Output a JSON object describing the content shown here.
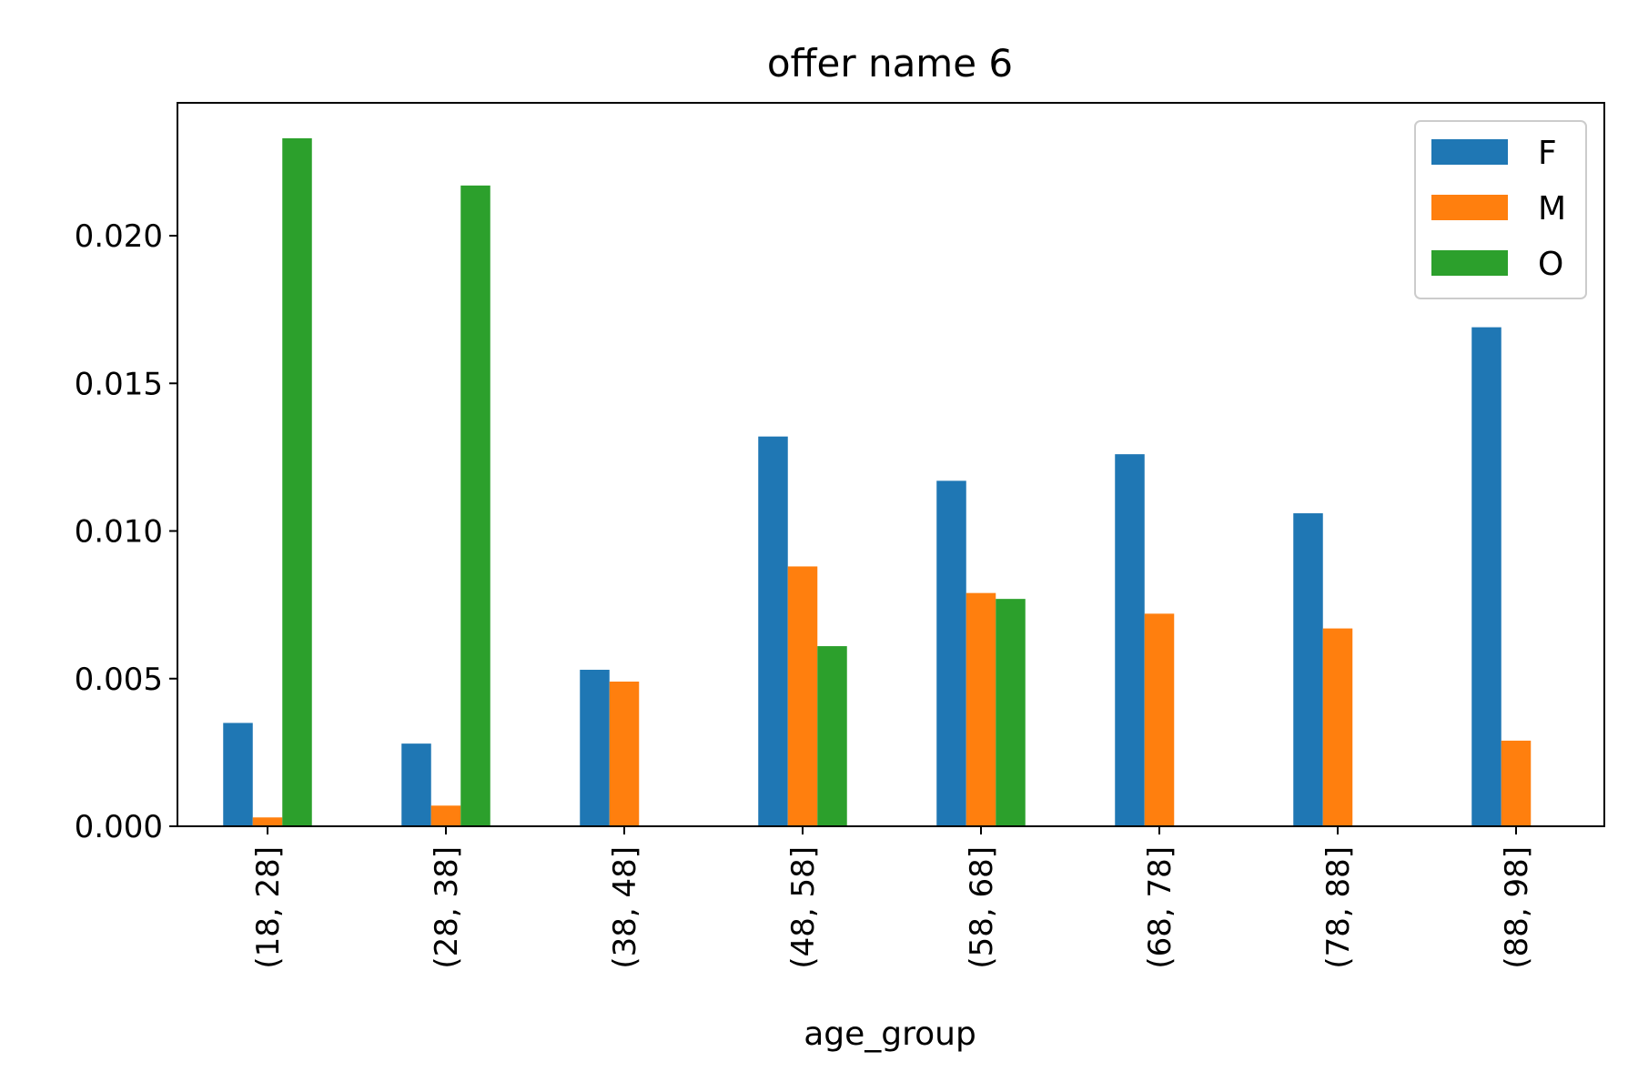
{
  "chart_data": {
    "type": "bar",
    "title": "offer name 6",
    "xlabel": "age_group",
    "ylabel": "",
    "categories": [
      "(18, 28]",
      "(28, 38]",
      "(38, 48]",
      "(48, 58]",
      "(58, 68]",
      "(68, 78]",
      "(78, 88]",
      "(88, 98]"
    ],
    "series": [
      {
        "name": "F",
        "color": "#1f77b4",
        "values": [
          0.0035,
          0.0028,
          0.0053,
          0.0132,
          0.0117,
          0.0126,
          0.0106,
          0.0169
        ]
      },
      {
        "name": "M",
        "color": "#ff7f0e",
        "values": [
          0.0003,
          0.0007,
          0.0049,
          0.0088,
          0.0079,
          0.0072,
          0.0067,
          0.0029
        ]
      },
      {
        "name": "O",
        "color": "#2ca02c",
        "values": [
          0.0233,
          0.0217,
          0,
          0.0061,
          0.0077,
          0,
          0,
          0
        ]
      }
    ],
    "yticks": [
      "0.000",
      "0.005",
      "0.010",
      "0.015",
      "0.020"
    ],
    "ylim": [
      0,
      0.0245
    ],
    "grid": false,
    "legend_position": "top-right"
  }
}
